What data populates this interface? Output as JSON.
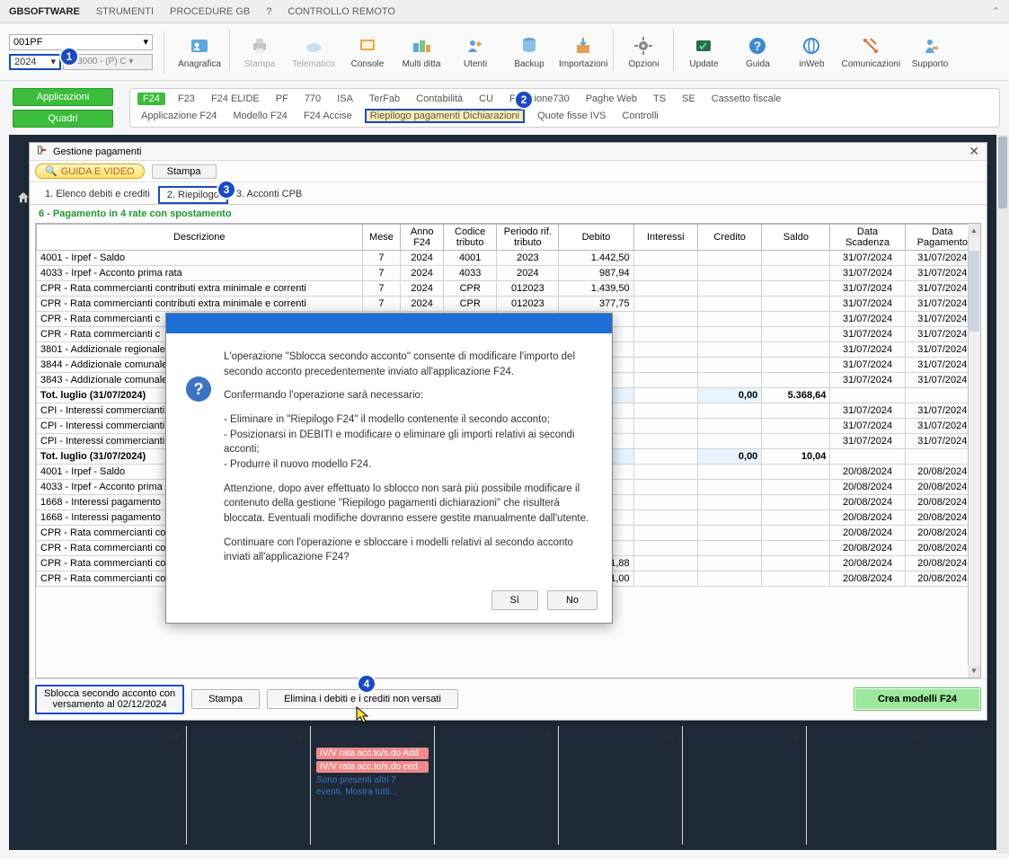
{
  "menubar": {
    "items": [
      "GBSOFTWARE",
      "STRUMENTI",
      "PROCEDURE GB",
      "?",
      "CONTROLLO REMOTO"
    ]
  },
  "selectors": {
    "top": "001PF",
    "year": "2024",
    "code": "013000 - (P) C ▾"
  },
  "ribbon": [
    {
      "label": "Anagrafica",
      "icon": "user-card",
      "disabled": false
    },
    {
      "label": "Stampa",
      "icon": "printer",
      "disabled": true
    },
    {
      "label": "Telematico",
      "icon": "cloud",
      "disabled": true
    },
    {
      "label": "Console",
      "icon": "board",
      "disabled": false
    },
    {
      "label": "Multi ditta",
      "icon": "multi",
      "disabled": false
    },
    {
      "label": "Utenti",
      "icon": "users",
      "disabled": false
    },
    {
      "label": "Backup",
      "icon": "db",
      "disabled": false
    },
    {
      "label": "Importazioni",
      "icon": "import",
      "disabled": false
    },
    {
      "label": "Opzioni",
      "icon": "gear",
      "disabled": false
    },
    {
      "label": "Update",
      "icon": "update",
      "disabled": false
    },
    {
      "label": "Guida",
      "icon": "help",
      "disabled": false
    },
    {
      "label": "inWeb",
      "icon": "inweb",
      "disabled": false
    },
    {
      "label": "Comunicazioni",
      "icon": "bell",
      "disabled": false
    },
    {
      "label": "Supporto",
      "icon": "support",
      "disabled": false
    }
  ],
  "sidebtns": [
    "Applicazioni",
    "Quadri"
  ],
  "chips1": [
    "F24",
    "F23",
    "F24 ELIDE",
    "PF",
    "770",
    "ISA",
    "TerFab",
    "Contabilità",
    "CU",
    "Ricezione730",
    "Paghe Web",
    "TS",
    "SE",
    "Cassetto fiscale"
  ],
  "chips2": [
    "Applicazione F24",
    "Modello F24",
    "F24 Accise",
    "Riepilogo pagamenti Dichiarazioni",
    "Quote fisse IVS",
    "Controlli"
  ],
  "paywin": {
    "title": "Gestione pagamenti",
    "guide": "GUIDA E VIDEO",
    "print": "Stampa",
    "tabs": [
      "1. Elenco debiti e crediti",
      "2. Riepilogo",
      "3. Acconti CPB"
    ],
    "rate_label": "6 - Pagamento in 4 rate con spostamento",
    "columns": [
      "Descrizione",
      "Mese",
      "Anno F24",
      "Codice tributo",
      "Periodo rif. tributo",
      "Debito",
      "Interessi",
      "Credito",
      "Saldo",
      "Data Scadenza",
      "Data Pagamento"
    ],
    "rows": [
      {
        "d": "4001 - Irpef - Saldo",
        "m": "7",
        "a": "2024",
        "c": "4001",
        "p": "2023",
        "deb": "1.442,50",
        "ds": "31/07/2024",
        "dp": "31/07/2024"
      },
      {
        "d": "4033 - Irpef - Acconto prima rata",
        "m": "7",
        "a": "2024",
        "c": "4033",
        "p": "2024",
        "deb": "987,94",
        "ds": "31/07/2024",
        "dp": "31/07/2024"
      },
      {
        "d": "CPR - Rata commercianti contributi extra minimale e correnti",
        "m": "7",
        "a": "2024",
        "c": "CPR",
        "p": "012023",
        "deb": "1.439,50",
        "ds": "31/07/2024",
        "dp": "31/07/2024"
      },
      {
        "d": "CPR - Rata commercianti contributi extra minimale e correnti",
        "m": "7",
        "a": "2024",
        "c": "CPR",
        "p": "012023",
        "deb": "377,75",
        "ds": "31/07/2024",
        "dp": "31/07/2024"
      },
      {
        "d": "CPR - Rata commercianti c",
        "ds": "31/07/2024",
        "dp": "31/07/2024"
      },
      {
        "d": "CPR - Rata commercianti c",
        "ds": "31/07/2024",
        "dp": "31/07/2024"
      },
      {
        "d": "3801 - Addizionale regionale delle persone fisiche",
        "ds": "31/07/2024",
        "dp": "31/07/2024"
      },
      {
        "d": "3844 - Addizionale comunale",
        "ds": "31/07/2024",
        "dp": "31/07/2024"
      },
      {
        "d": "3843 - Addizionale comunale",
        "ds": "31/07/2024",
        "dp": "31/07/2024"
      },
      {
        "d": "Tot. luglio (31/07/2024)",
        "cr": "0,00",
        "sa": "5.368,64",
        "tot": true,
        "hl": true
      },
      {
        "d": "CPI - Interessi commercianti e correnti",
        "ds": "31/07/2024",
        "dp": "31/07/2024"
      },
      {
        "d": "CPI - Interessi commercianti e correnti",
        "ds": "31/07/2024",
        "dp": "31/07/2024"
      },
      {
        "d": "CPI - Interessi commercianti e correnti",
        "ds": "31/07/2024",
        "dp": "31/07/2024"
      },
      {
        "d": "Tot. luglio (31/07/2024)",
        "cr": "0,00",
        "sa": "10,04",
        "tot": true,
        "hl": true
      },
      {
        "d": "4001 - Irpef - Saldo",
        "ds": "20/08/2024",
        "dp": "20/08/2024"
      },
      {
        "d": "4033 - Irpef - Acconto prima",
        "ds": "20/08/2024",
        "dp": "20/08/2024"
      },
      {
        "d": "1668 - Interessi pagamento",
        "ds": "20/08/2024",
        "dp": "20/08/2024"
      },
      {
        "d": "1668 - Interessi pagamento",
        "ds": "20/08/2024",
        "dp": "20/08/2024"
      },
      {
        "d": "CPR - Rata commercianti con correnti",
        "ds": "20/08/2024",
        "dp": "20/08/2024"
      },
      {
        "d": "CPR - Rata commercianti con correnti",
        "ds": "20/08/2024",
        "dp": "20/08/2024"
      },
      {
        "d": "CPR - Rata commercianti contributi extra minimale e correnti",
        "m": "8",
        "a": "2024",
        "c": "CPR",
        "p": "012024",
        "deb": "691,88",
        "ds": "20/08/2024",
        "dp": "20/08/2024"
      },
      {
        "d": "CPR - Rata commercianti contributi extra minimale e",
        "m": "8",
        "a": "2024",
        "p": "012024",
        "deb": "161,00",
        "ds": "20/08/2024",
        "dp": "20/08/2024"
      }
    ],
    "buttons": {
      "unlock_l1": "Sblocca secondo acconto con",
      "unlock_l2": "versamento al 02/12/2024",
      "print": "Stampa",
      "delete": "Elimina i debiti e i crediti non versati",
      "create": "Crea modelli F24"
    }
  },
  "modal": {
    "p1": "L'operazione \"Sblocca secondo acconto\" consente di modificare l'importo del secondo acconto precedentemente inviato all'applicazione F24.",
    "p2": "Confermando l'operazione sarà necessario:",
    "li1": "- Eliminare in \"Riepilogo F24\" il modello contenente il secondo acconto;",
    "li2": "- Posizionarsi in DEBITI e modificare o eliminare gli importi relativi ai secondi acconti;",
    "li3": "- Produrre il nuovo modello F24.",
    "p3": "Attenzione, dopo aver effettuato lo sblocco non sarà più possibile modificare il contenuto della gestione \"Riepilogo pagamenti dichiarazioni\" che risulterà bloccata. Eventuali modifiche dovranno essere gestite manualmente dall'utente.",
    "p4": "Continuare con l'operazione e sbloccare i modelli relativi al secondo acconto inviati all'applicazione F24?",
    "yes": "Sì",
    "no": "No"
  },
  "calendar": {
    "days": [
      "14",
      "15",
      "16",
      "17",
      "18",
      "19",
      "20"
    ],
    "events": [
      "IV/V rata acc.to/s.do Add",
      "IV/V rata acc.to/s.do ced"
    ],
    "more_l1": "Sono presenti altri 7",
    "more_l2": "eventi. Mostra tutti..."
  },
  "badges": {
    "1": "1",
    "2": "2",
    "3": "3",
    "4": "4"
  }
}
